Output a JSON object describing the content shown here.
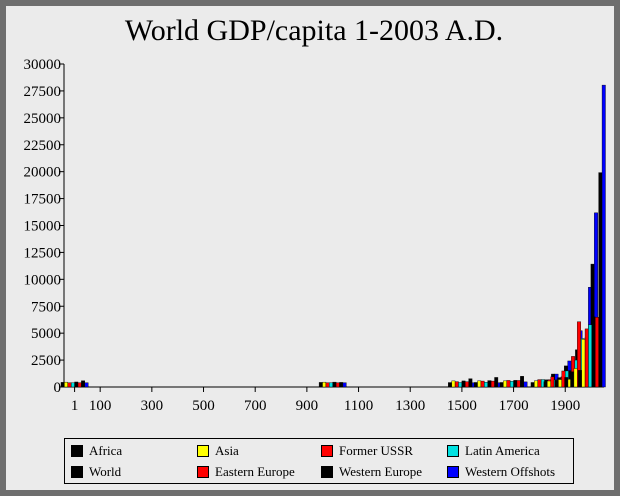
{
  "chart_data": {
    "type": "bar",
    "title": "World GDP/capita 1-2003 A.D.",
    "xlabel": "",
    "ylabel": "",
    "ylim": [
      0,
      30000
    ],
    "yticks": [
      0,
      2500,
      5000,
      7500,
      10000,
      12500,
      15000,
      17500,
      20000,
      22500,
      25000,
      27500,
      30000
    ],
    "xticks": [
      1,
      100,
      300,
      500,
      700,
      900,
      1100,
      1300,
      1500,
      1700,
      1900
    ],
    "grid": false,
    "legend_position": "bottom",
    "categories": [
      1,
      1000,
      1500,
      1600,
      1700,
      1820,
      1870,
      1913,
      1950,
      1973,
      2003
    ],
    "series": [
      {
        "name": "Africa",
        "color": "#000000",
        "values": [
          430,
          425,
          414,
          422,
          421,
          420,
          500,
          637,
          890,
          1410,
          1549
        ]
      },
      {
        "name": "Asia",
        "color": "#ffff00",
        "values": [
          450,
          450,
          568,
          574,
          572,
          581,
          556,
          696,
          717,
          1720,
          4434
        ]
      },
      {
        "name": "Former USSR",
        "color": "#ff0000",
        "values": [
          400,
          400,
          499,
          552,
          610,
          688,
          943,
          1488,
          2841,
          6059,
          5397
        ]
      },
      {
        "name": "Latin America",
        "color": "#00e0e0",
        "values": [
          400,
          400,
          416,
          438,
          527,
          692,
          681,
          1494,
          2503,
          4504,
          5786
        ]
      },
      {
        "name": "World",
        "color": "#000000",
        "values": [
          467,
          453,
          566,
          596,
          616,
          667,
          873,
          1526,
          2113,
          4091,
          6516
        ]
      },
      {
        "name": "Eastern Europe",
        "color": "#ff0000",
        "values": [
          400,
          400,
          496,
          548,
          606,
          683,
          937,
          1695,
          2111,
          4988,
          6476
        ]
      },
      {
        "name": "Western Europe",
        "color": "#000000",
        "values": [
          576,
          427,
          771,
          888,
          993,
          1204,
          1960,
          3457,
          4578,
          11417,
          19912
        ]
      },
      {
        "name": "Western Offshots",
        "color": "#0000ff",
        "values": [
          400,
          400,
          400,
          400,
          476,
          1202,
          2419,
          5233,
          9268,
          16179,
          28039
        ]
      }
    ]
  }
}
